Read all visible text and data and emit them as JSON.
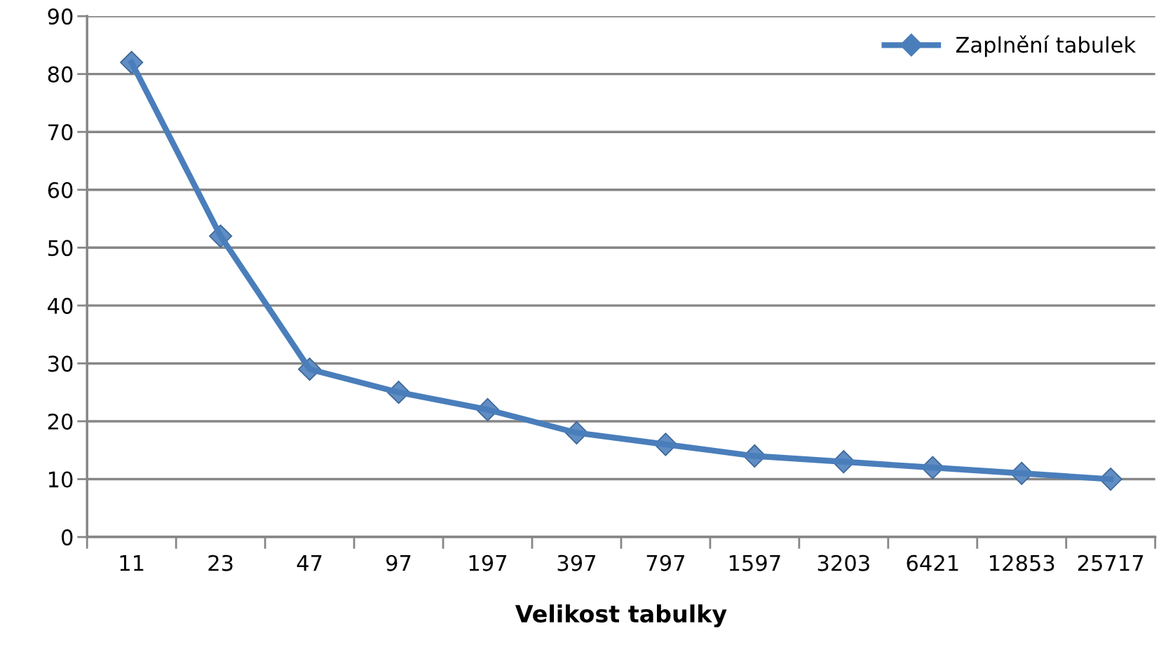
{
  "chart_data": {
    "type": "line",
    "xlabel": "Velikost tabulky",
    "categories": [
      "11",
      "23",
      "47",
      "97",
      "197",
      "397",
      "797",
      "1597",
      "3203",
      "6421",
      "12853",
      "25717"
    ],
    "series": [
      {
        "name": "Zaplnění tabulek",
        "color": "#4a7ebb",
        "values": [
          82,
          52,
          29,
          25,
          22,
          18,
          16,
          14,
          13,
          12,
          11,
          10
        ]
      }
    ],
    "ylim": [
      0,
      90
    ],
    "yticks": [
      0,
      10,
      20,
      30,
      40,
      50,
      60,
      70,
      80,
      90
    ],
    "grid": "y",
    "legend": "top right",
    "marker": "diamond",
    "line_style": "solid"
  }
}
